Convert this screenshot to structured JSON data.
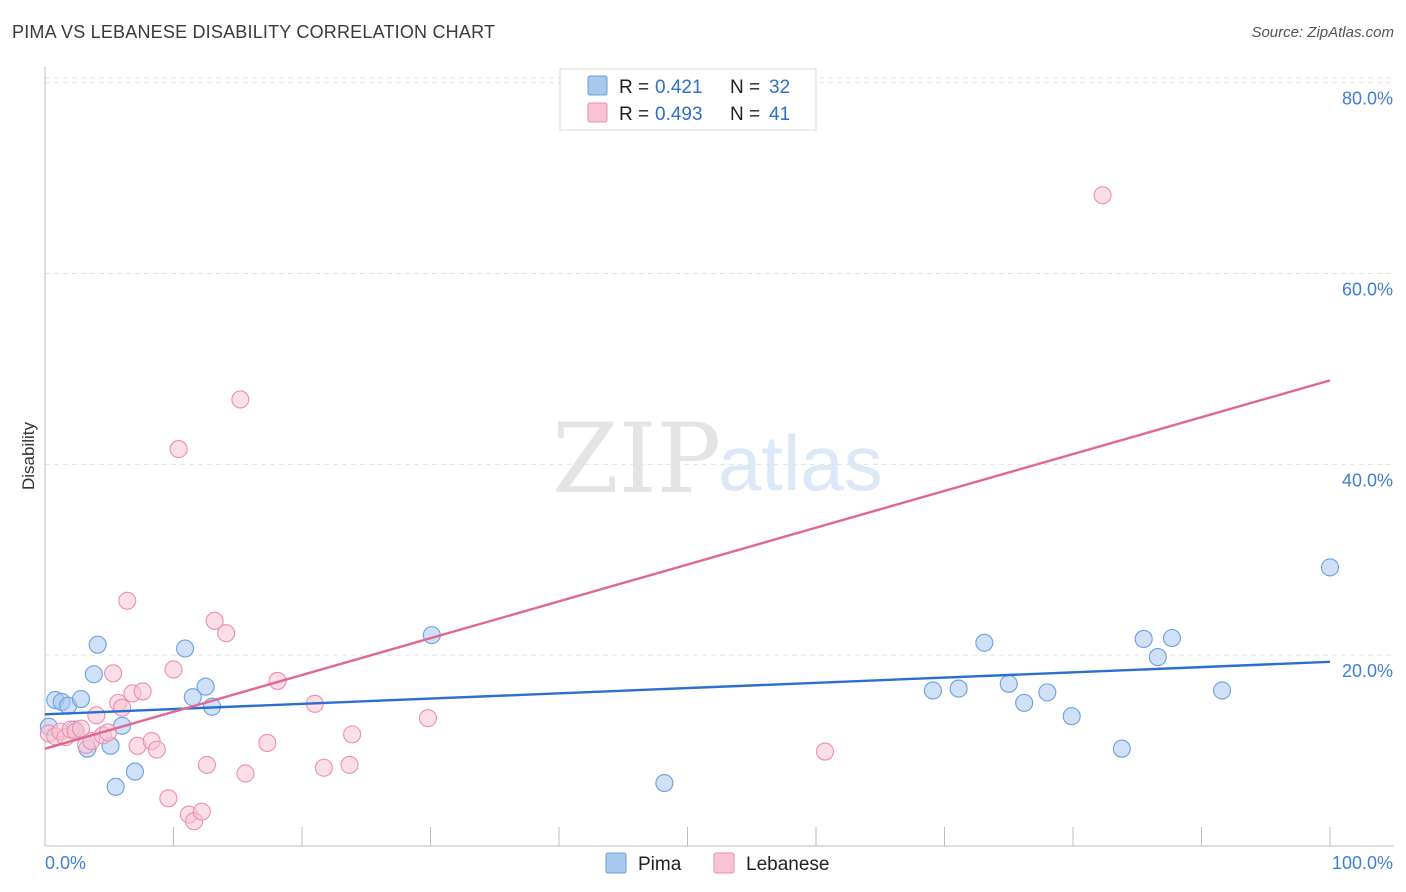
{
  "header": {
    "title": "PIMA VS LEBANESE DISABILITY CORRELATION CHART",
    "source": "Source: ZipAtlas.com"
  },
  "watermark": {
    "zip": "ZIP",
    "atlas": "atlas"
  },
  "legend_top": [
    {
      "r_label": "R = ",
      "r_value": "0.421",
      "n_label": "N = ",
      "n_value": "32",
      "color": "#a9c8f0",
      "stroke": "#6a9fe0"
    },
    {
      "r_label": "R = ",
      "r_value": "0.493",
      "n_label": "N = ",
      "n_value": "41",
      "color": "#f8c3d3",
      "stroke": "#ec8fae"
    }
  ],
  "legend_bottom": [
    {
      "label": "Pima",
      "color": "#a9c8f0",
      "stroke": "#6a9fe0"
    },
    {
      "label": "Lebanese",
      "color": "#f8c3d3",
      "stroke": "#ec8fae"
    }
  ],
  "chart_data": {
    "type": "scatter",
    "title": "PIMA VS LEBANESE DISABILITY CORRELATION CHART",
    "xlabel": "",
    "ylabel": "Disability",
    "xlim": [
      0,
      100
    ],
    "ylim": [
      0,
      80
    ],
    "x_tick_labels": [
      "0.0%",
      "100.0%"
    ],
    "y_ticks": [
      20,
      40,
      60,
      80
    ],
    "y_tick_labels": [
      "20.0%",
      "40.0%",
      "60.0%",
      "80.0%"
    ],
    "grid": true,
    "legend_position": "top-center",
    "series": [
      {
        "name": "Pima",
        "color": "#6a9fe0",
        "trend_color": "#2a6fd0",
        "trendline": [
          [
            0,
            13.8
          ],
          [
            100,
            19.3
          ]
        ],
        "points": [
          [
            0.3,
            12.5
          ],
          [
            0.8,
            15.3
          ],
          [
            1.3,
            15.1
          ],
          [
            1.8,
            14.7
          ],
          [
            2.3,
            12.2
          ],
          [
            2.8,
            15.4
          ],
          [
            3.3,
            10.2
          ],
          [
            3.8,
            18.0
          ],
          [
            4.1,
            21.1
          ],
          [
            5.1,
            10.5
          ],
          [
            5.5,
            6.2
          ],
          [
            6.0,
            12.6
          ],
          [
            7.0,
            7.8
          ],
          [
            10.9,
            20.7
          ],
          [
            11.5,
            15.6
          ],
          [
            12.5,
            16.7
          ],
          [
            13.0,
            14.6
          ],
          [
            30.1,
            22.1
          ],
          [
            48.2,
            6.6
          ],
          [
            69.1,
            16.3
          ],
          [
            71.1,
            16.5
          ],
          [
            73.1,
            21.3
          ],
          [
            75.0,
            17.0
          ],
          [
            76.2,
            15.0
          ],
          [
            78.0,
            16.1
          ],
          [
            79.9,
            13.6
          ],
          [
            83.8,
            10.2
          ],
          [
            85.5,
            21.7
          ],
          [
            86.6,
            19.8
          ],
          [
            87.7,
            21.8
          ],
          [
            91.6,
            16.3
          ],
          [
            100.0,
            29.2
          ]
        ]
      },
      {
        "name": "Lebanese",
        "color": "#ec8fae",
        "trend_color": "#e0678f",
        "trendline": [
          [
            0,
            10.2
          ],
          [
            100,
            48.8
          ]
        ],
        "points": [
          [
            0.3,
            11.8
          ],
          [
            0.8,
            11.5
          ],
          [
            1.2,
            12.0
          ],
          [
            1.6,
            11.4
          ],
          [
            2.0,
            12.2
          ],
          [
            2.4,
            12.0
          ],
          [
            2.8,
            12.3
          ],
          [
            3.2,
            10.6
          ],
          [
            3.6,
            11.0
          ],
          [
            4.0,
            13.7
          ],
          [
            4.5,
            11.6
          ],
          [
            4.9,
            11.9
          ],
          [
            5.3,
            18.1
          ],
          [
            5.7,
            15.0
          ],
          [
            6.0,
            14.5
          ],
          [
            6.4,
            25.7
          ],
          [
            6.8,
            16.0
          ],
          [
            7.2,
            10.5
          ],
          [
            7.6,
            16.2
          ],
          [
            8.3,
            11.0
          ],
          [
            8.7,
            10.1
          ],
          [
            9.6,
            5.0
          ],
          [
            10.0,
            18.5
          ],
          [
            10.4,
            41.6
          ],
          [
            11.2,
            3.3
          ],
          [
            11.6,
            2.6
          ],
          [
            12.2,
            3.6
          ],
          [
            12.6,
            8.5
          ],
          [
            13.2,
            23.6
          ],
          [
            14.1,
            22.3
          ],
          [
            15.2,
            46.8
          ],
          [
            15.6,
            7.6
          ],
          [
            17.3,
            10.8
          ],
          [
            18.1,
            17.3
          ],
          [
            21.0,
            14.9
          ],
          [
            21.7,
            8.2
          ],
          [
            23.7,
            8.5
          ],
          [
            23.9,
            11.7
          ],
          [
            29.8,
            13.4
          ],
          [
            60.7,
            9.9
          ],
          [
            82.3,
            68.2
          ]
        ]
      }
    ]
  }
}
